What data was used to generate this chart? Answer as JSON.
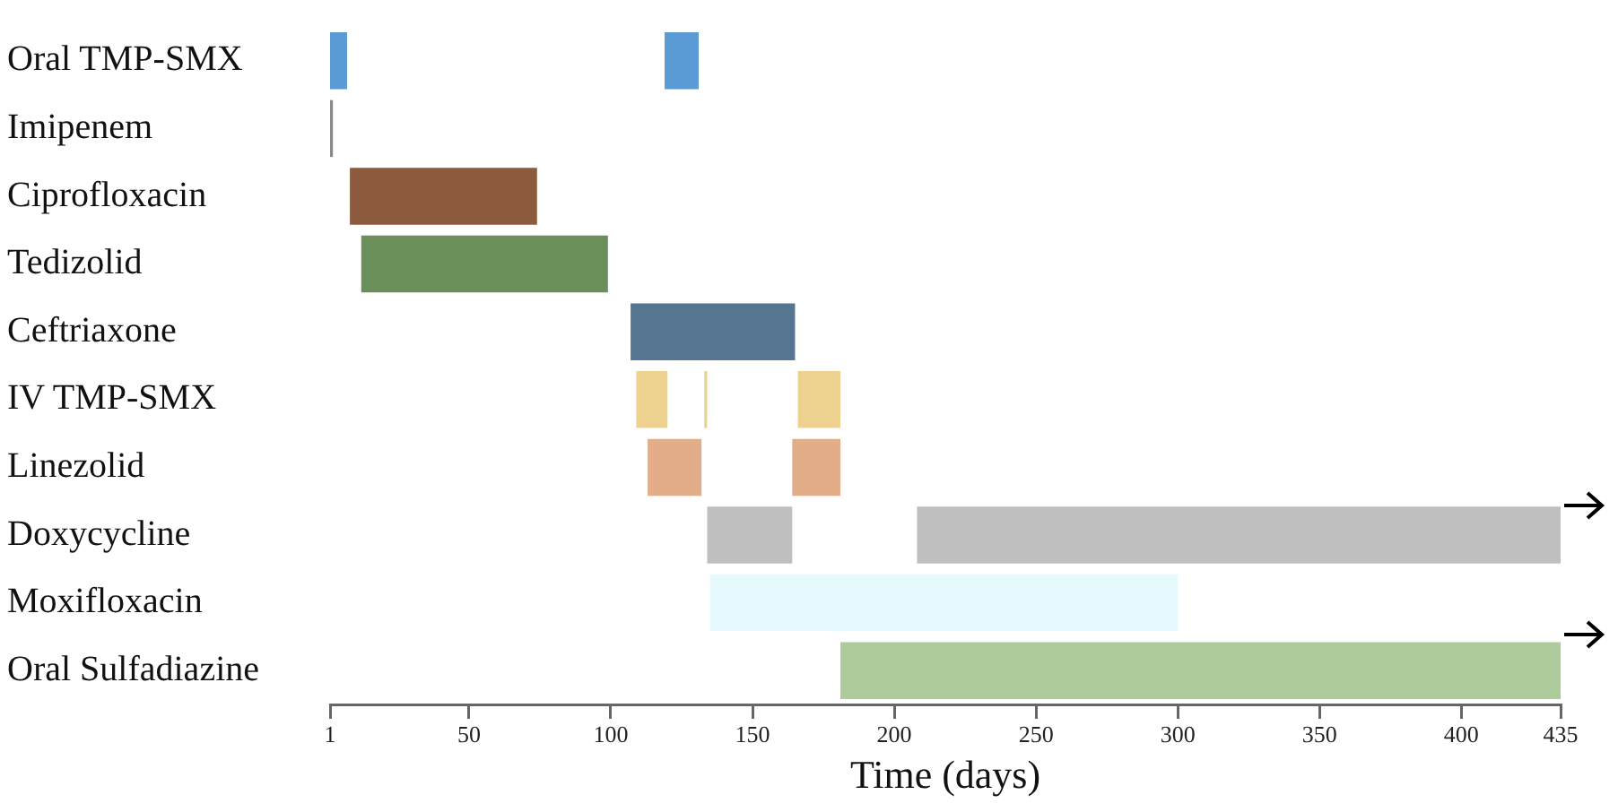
{
  "chart_data": {
    "type": "bar",
    "orientation": "horizontal",
    "xlabel": "Time (days)",
    "categories": [
      "Oral TMP-SMX",
      "Imipenem",
      "Ciprofloxacin",
      "Tedizolid",
      "Ceftriaxone",
      "IV TMP-SMX",
      "Linezolid",
      "Doxycycline",
      "Moxifloxacin",
      "Oral Sulfadiazine"
    ],
    "xlim": [
      1,
      435
    ],
    "xticks": [
      1,
      50,
      100,
      150,
      200,
      250,
      300,
      350,
      400,
      435
    ],
    "series": [
      {
        "base": [
          1,
          1,
          8,
          12,
          107,
          109,
          113,
          134,
          135,
          181
        ],
        "values": [
          6,
          1,
          66,
          87,
          58,
          11,
          19,
          30,
          165,
          254
        ],
        "colors": [
          "#5b9bd5",
          "#8a8a8a",
          "#8c5a3c",
          "#6a8f5a",
          "#557590",
          "#ecd28e",
          "#e4ad8a",
          "#bfbfbf",
          "#e6f9fd",
          "#aecb9c"
        ]
      },
      {
        "base": [
          119,
          null,
          null,
          null,
          null,
          133,
          164,
          208,
          null,
          null
        ],
        "values": [
          12,
          null,
          null,
          null,
          null,
          1,
          17,
          227,
          null,
          null
        ],
        "colors": [
          "#5b9bd5",
          null,
          null,
          null,
          null,
          "#ecd28e",
          "#e4ad8a",
          "#bfbfbf",
          null,
          null
        ]
      },
      {
        "base": [
          null,
          null,
          null,
          null,
          null,
          166,
          null,
          null,
          null,
          null
        ],
        "values": [
          null,
          null,
          null,
          null,
          null,
          15,
          null,
          null,
          null,
          null
        ],
        "colors": [
          null,
          null,
          null,
          null,
          null,
          "#ecd28e",
          null,
          null,
          null,
          null
        ]
      }
    ]
  }
}
